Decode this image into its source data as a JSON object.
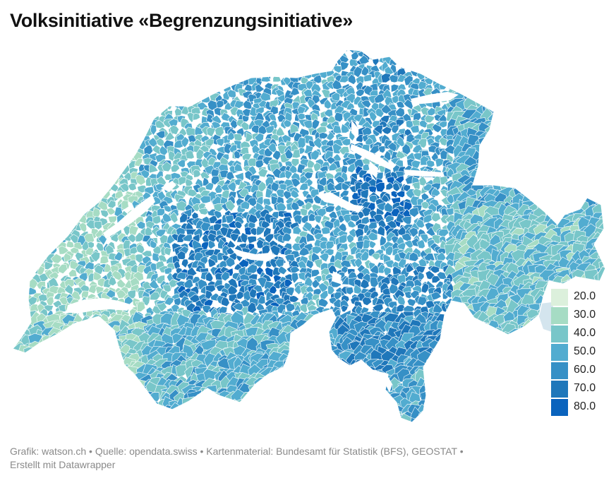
{
  "title": "Volksinitiative «Begrenzungsinitiative»",
  "legend": [
    {
      "label": "20.0",
      "color": "#dcf0dc"
    },
    {
      "label": "30.0",
      "color": "#a6dcc4"
    },
    {
      "label": "40.0",
      "color": "#78c6c9"
    },
    {
      "label": "50.0",
      "color": "#52acd0"
    },
    {
      "label": "60.0",
      "color": "#3690c6"
    },
    {
      "label": "70.0",
      "color": "#1f77ba"
    },
    {
      "label": "80.0",
      "color": "#0a63bd"
    }
  ],
  "footer": {
    "graphic": "Grafik: watson.ch",
    "source": "Quelle: opendata.swiss",
    "map_material": "Kartenmaterial: Bundesamt für Statistik (BFS), GEOSTAT",
    "created_with": "Erstellt mit Datawrapper",
    "separator": "•"
  },
  "colors": {
    "lake": "#ffffff",
    "border": "#ffffff",
    "outside_hatch": "#c9dfea"
  }
}
